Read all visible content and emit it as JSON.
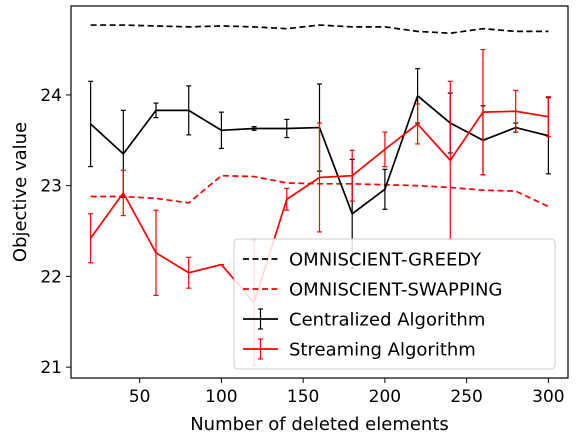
{
  "chart_data": {
    "type": "line",
    "xlabel": "Number of deleted elements",
    "ylabel": "Objective value",
    "xlim": [
      8,
      312
    ],
    "ylim": [
      20.88,
      24.98
    ],
    "xticks": [
      50,
      100,
      150,
      200,
      250,
      300
    ],
    "yticks": [
      21,
      22,
      23,
      24
    ],
    "legend_position": "lower-right",
    "x": [
      20,
      40,
      60,
      80,
      100,
      120,
      140,
      160,
      180,
      200,
      220,
      240,
      260,
      280,
      300
    ],
    "series": [
      {
        "name": "OMNISCIENT-GREEDY",
        "color": "#000000",
        "style": "dashed",
        "values": [
          24.77,
          24.77,
          24.76,
          24.75,
          24.76,
          24.75,
          24.73,
          24.77,
          24.75,
          24.75,
          24.7,
          24.68,
          24.73,
          24.7,
          24.7
        ]
      },
      {
        "name": "OMNISCIENT-SWAPPING",
        "color": "#ff0000",
        "style": "dashed",
        "values": [
          22.88,
          22.88,
          22.86,
          22.81,
          23.11,
          23.1,
          23.03,
          23.02,
          23.02,
          23.01,
          23.0,
          22.98,
          22.95,
          22.94,
          22.77
        ]
      },
      {
        "name": "Centralized Algorithm",
        "color": "#000000",
        "style": "solid",
        "values": [
          23.68,
          23.35,
          23.83,
          23.83,
          23.61,
          23.63,
          23.63,
          23.64,
          22.69,
          22.96,
          23.99,
          23.69,
          23.5,
          23.64,
          23.55
        ],
        "errors": [
          0.47,
          0.48,
          0.08,
          0.27,
          0.2,
          0.02,
          0.1,
          0.48,
          0.6,
          0.22,
          0.3,
          0.33,
          0.38,
          0.05,
          0.42
        ]
      },
      {
        "name": "Streaming Algorithm",
        "color": "#ff0000",
        "style": "solid",
        "values": [
          22.42,
          22.92,
          22.26,
          22.04,
          22.13,
          21.71,
          22.85,
          23.09,
          23.11,
          23.4,
          23.68,
          23.28,
          23.81,
          23.82,
          23.76
        ],
        "errors": [
          0.27,
          0.25,
          0.47,
          0.17,
          0.0,
          0.69,
          0.12,
          0.6,
          0.28,
          0.19,
          0.22,
          0.87,
          0.69,
          0.23,
          0.22
        ]
      }
    ]
  }
}
